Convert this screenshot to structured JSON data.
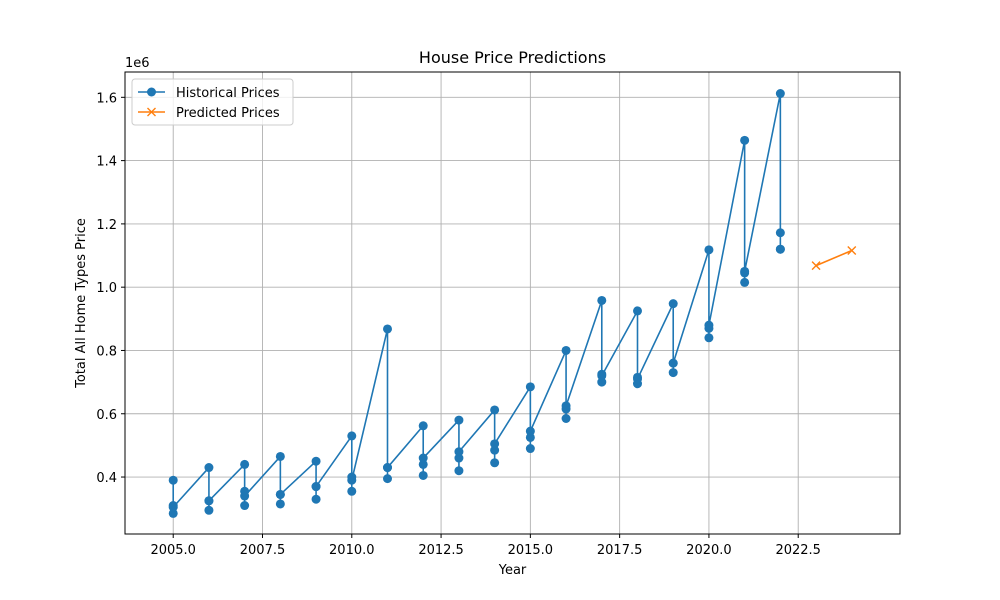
{
  "chart_data": {
    "type": "line",
    "title": "House Price Predictions",
    "xlabel": "Year",
    "ylabel": "Total All Home Types Price",
    "y_offset_label": "1e6",
    "xlim": [
      2003.65,
      2025.35
    ],
    "ylim": [
      0.22,
      1.68
    ],
    "x_ticks": [
      2005.0,
      2007.5,
      2010.0,
      2012.5,
      2015.0,
      2017.5,
      2020.0,
      2022.5
    ],
    "x_tick_labels": [
      "2005.0",
      "2007.5",
      "2010.0",
      "2012.5",
      "2015.0",
      "2017.5",
      "2020.0",
      "2022.5"
    ],
    "y_ticks": [
      0.4,
      0.6,
      0.8,
      1.0,
      1.2,
      1.4,
      1.6
    ],
    "y_tick_labels": [
      "0.4",
      "0.6",
      "0.8",
      "1.0",
      "1.2",
      "1.4",
      "1.6"
    ],
    "grid": true,
    "legend_position": "top-left",
    "series": [
      {
        "name": "Historical Prices",
        "color": "#1f77b4",
        "marker": "circle",
        "x": [
          2005,
          2005,
          2005,
          2005,
          2006,
          2006,
          2006,
          2006,
          2007,
          2007,
          2007,
          2007,
          2008,
          2008,
          2008,
          2008,
          2009,
          2009,
          2009,
          2009,
          2010,
          2010,
          2010,
          2010,
          2011,
          2011,
          2011,
          2011,
          2012,
          2012,
          2012,
          2012,
          2013,
          2013,
          2013,
          2013,
          2014,
          2014,
          2014,
          2014,
          2015,
          2015,
          2015,
          2015,
          2016,
          2016,
          2016,
          2016,
          2017,
          2017,
          2017,
          2017,
          2018,
          2018,
          2018,
          2018,
          2019,
          2019,
          2019,
          2019,
          2020,
          2020,
          2020,
          2020,
          2021,
          2021,
          2021,
          2021,
          2022,
          2022,
          2022,
          2022
        ],
        "y": [
          0.39,
          0.285,
          0.31,
          0.305,
          0.43,
          0.295,
          0.325,
          0.325,
          0.44,
          0.31,
          0.355,
          0.34,
          0.465,
          0.315,
          0.345,
          0.345,
          0.45,
          0.33,
          0.37,
          0.37,
          0.53,
          0.355,
          0.4,
          0.39,
          0.868,
          0.395,
          0.43,
          0.43,
          0.562,
          0.405,
          0.44,
          0.46,
          0.58,
          0.42,
          0.46,
          0.48,
          0.612,
          0.445,
          0.485,
          0.505,
          0.685,
          0.49,
          0.525,
          0.545,
          0.8,
          0.585,
          0.615,
          0.625,
          0.958,
          0.7,
          0.725,
          0.72,
          0.925,
          0.695,
          0.715,
          0.71,
          0.948,
          0.73,
          0.76,
          0.76,
          1.118,
          0.84,
          0.87,
          0.88,
          1.464,
          1.015,
          1.045,
          1.05,
          1.612,
          1.12,
          1.172,
          1.12
        ]
      },
      {
        "name": "Predicted Prices",
        "color": "#ff7f0e",
        "marker": "x",
        "x": [
          2023,
          2024
        ],
        "y": [
          1.068,
          1.116
        ]
      }
    ]
  }
}
